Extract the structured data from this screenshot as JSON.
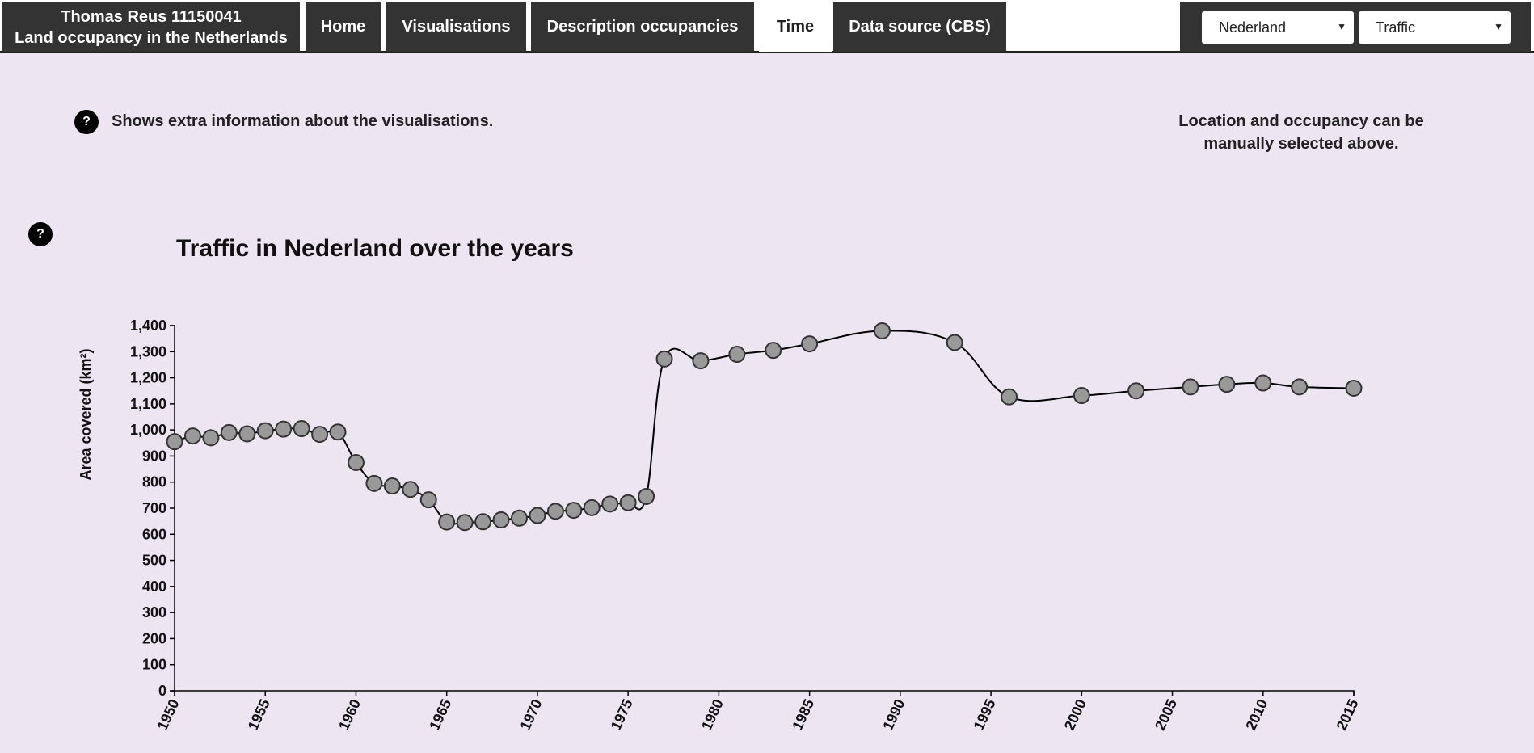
{
  "navbar": {
    "brand_line1": "Thomas Reus 11150041",
    "brand_line2": "Land occupancy in the Netherlands",
    "tabs": [
      {
        "label": "Home",
        "active": false
      },
      {
        "label": "Visualisations",
        "active": false
      },
      {
        "label": "Description occupancies",
        "active": false
      },
      {
        "label": "Time",
        "active": true
      },
      {
        "label": "Data source (CBS)",
        "active": false
      }
    ],
    "location_select": "Nederland",
    "occupancy_select": "Traffic"
  },
  "info": {
    "help_symbol": "?",
    "extra_info_text": "Shows extra information about the visualisations.",
    "selection_hint": "Location and occupancy can be manually selected above."
  },
  "chart_data": {
    "type": "line",
    "title": "Traffic in Nederland over the years",
    "xlabel": "",
    "ylabel": "Area covered (km²)",
    "xlim": [
      1950,
      2015
    ],
    "ylim": [
      0,
      1400
    ],
    "x_ticks": [
      "1950",
      "1955",
      "1960",
      "1965",
      "1970",
      "1975",
      "1980",
      "1985",
      "1990",
      "1995",
      "2000",
      "2005",
      "2010",
      "2015"
    ],
    "y_ticks": [
      "0",
      "100",
      "200",
      "300",
      "400",
      "500",
      "600",
      "700",
      "800",
      "900",
      "1,000",
      "1,100",
      "1,200",
      "1,300",
      "1,400"
    ],
    "grid": false,
    "x": [
      1950,
      1951,
      1952,
      1953,
      1954,
      1955,
      1956,
      1957,
      1958,
      1959,
      1960,
      1961,
      1962,
      1963,
      1964,
      1965,
      1966,
      1967,
      1968,
      1969,
      1970,
      1971,
      1972,
      1973,
      1974,
      1975,
      1976,
      1977,
      1979,
      1981,
      1983,
      1985,
      1989,
      1993,
      1996,
      2000,
      2003,
      2006,
      2008,
      2010,
      2012,
      2015
    ],
    "y": [
      955,
      977,
      970,
      990,
      985,
      997,
      1003,
      1005,
      983,
      992,
      875,
      795,
      785,
      772,
      732,
      647,
      645,
      648,
      655,
      662,
      672,
      688,
      692,
      702,
      716,
      721,
      745,
      1272,
      1265,
      1290,
      1305,
      1330,
      1380,
      1335,
      1127,
      1132,
      1150,
      1165,
      1175,
      1180,
      1165,
      1160
    ],
    "marker_fill": "#999999",
    "line_color": "#000000"
  }
}
